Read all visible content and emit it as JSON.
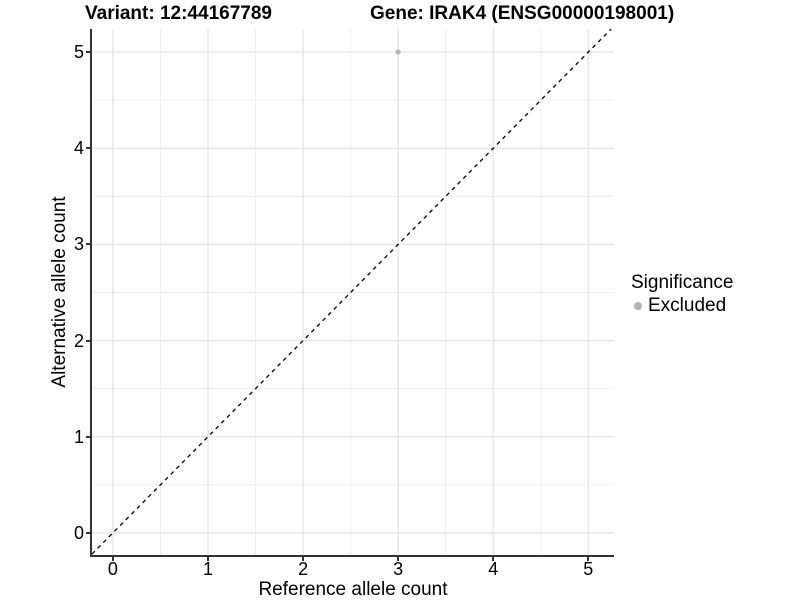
{
  "chart_data": {
    "type": "scatter",
    "title_left": "Variant: 12:44167789",
    "title_right": "Gene: IRAK4 (ENSG00000198001)",
    "xlabel": "Reference allele count",
    "ylabel": "Alternative allele count",
    "x_ticks": [
      0,
      1,
      2,
      3,
      4,
      5
    ],
    "y_ticks": [
      0,
      1,
      2,
      3,
      4,
      5
    ],
    "xlim": [
      -0.22,
      5.27
    ],
    "ylim": [
      -0.23,
      5.24
    ],
    "grid": "major+minor",
    "minor_step": 0.5,
    "points": [
      {
        "x": 3,
        "y": 5,
        "significance": "Excluded"
      }
    ],
    "identity_line": {
      "slope": 1,
      "intercept": 0,
      "style": "dashed",
      "color": "#000000"
    },
    "legend": {
      "title": "Significance",
      "position": "right",
      "entries": [
        {
          "label": "Excluded",
          "color": "#b3b3b3"
        }
      ]
    },
    "style": {
      "point_color": "#b3b3b3",
      "point_radius": 2.6,
      "grid_major_color": "#e2e2e2",
      "grid_minor_color": "#efefef",
      "axis_line_color": "#333333",
      "background": "#ffffff"
    }
  }
}
